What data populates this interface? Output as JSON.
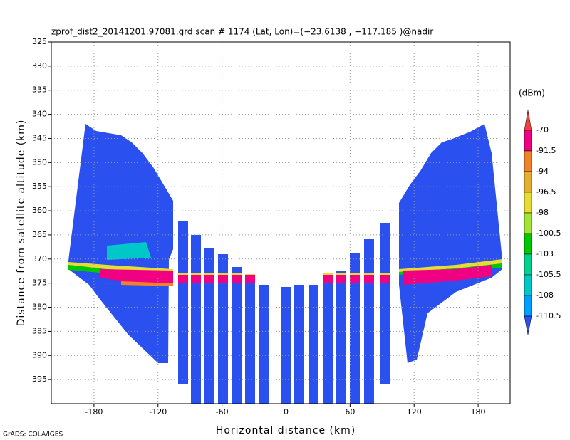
{
  "chart_data": {
    "type": "field",
    "title": "zprof_dist2_20141201.97081.grd  scan # 1174  (Lat, Lon)=(−23.6138 , −117.185 )@nadir",
    "x_label": "Horizontal distance (km)",
    "y_label": "Distance from satellite altitude (km)",
    "footer": "GrADS: COLA/IGES",
    "xlim": [
      -220,
      210
    ],
    "xticks": [
      -180,
      -120,
      -60,
      0,
      60,
      120,
      180
    ],
    "ylim": [
      325,
      400
    ],
    "yticks": [
      325,
      330,
      335,
      340,
      345,
      350,
      355,
      360,
      365,
      370,
      375,
      380,
      385,
      390,
      395
    ],
    "y_reversed": true,
    "grid": true,
    "colorbar": {
      "label": "(dBm)",
      "levels": [
        -70,
        -91.5,
        -94,
        -96.5,
        -98,
        -100.5,
        -103,
        -105.5,
        -108,
        -110.5
      ],
      "colors": [
        "#f04040",
        "#f00082",
        "#f08228",
        "#e6af2d",
        "#e6dc32",
        "#a0e632",
        "#00c800",
        "#00d28c",
        "#00c8c8",
        "#00a0ff",
        "#2a50f0"
      ]
    }
  }
}
